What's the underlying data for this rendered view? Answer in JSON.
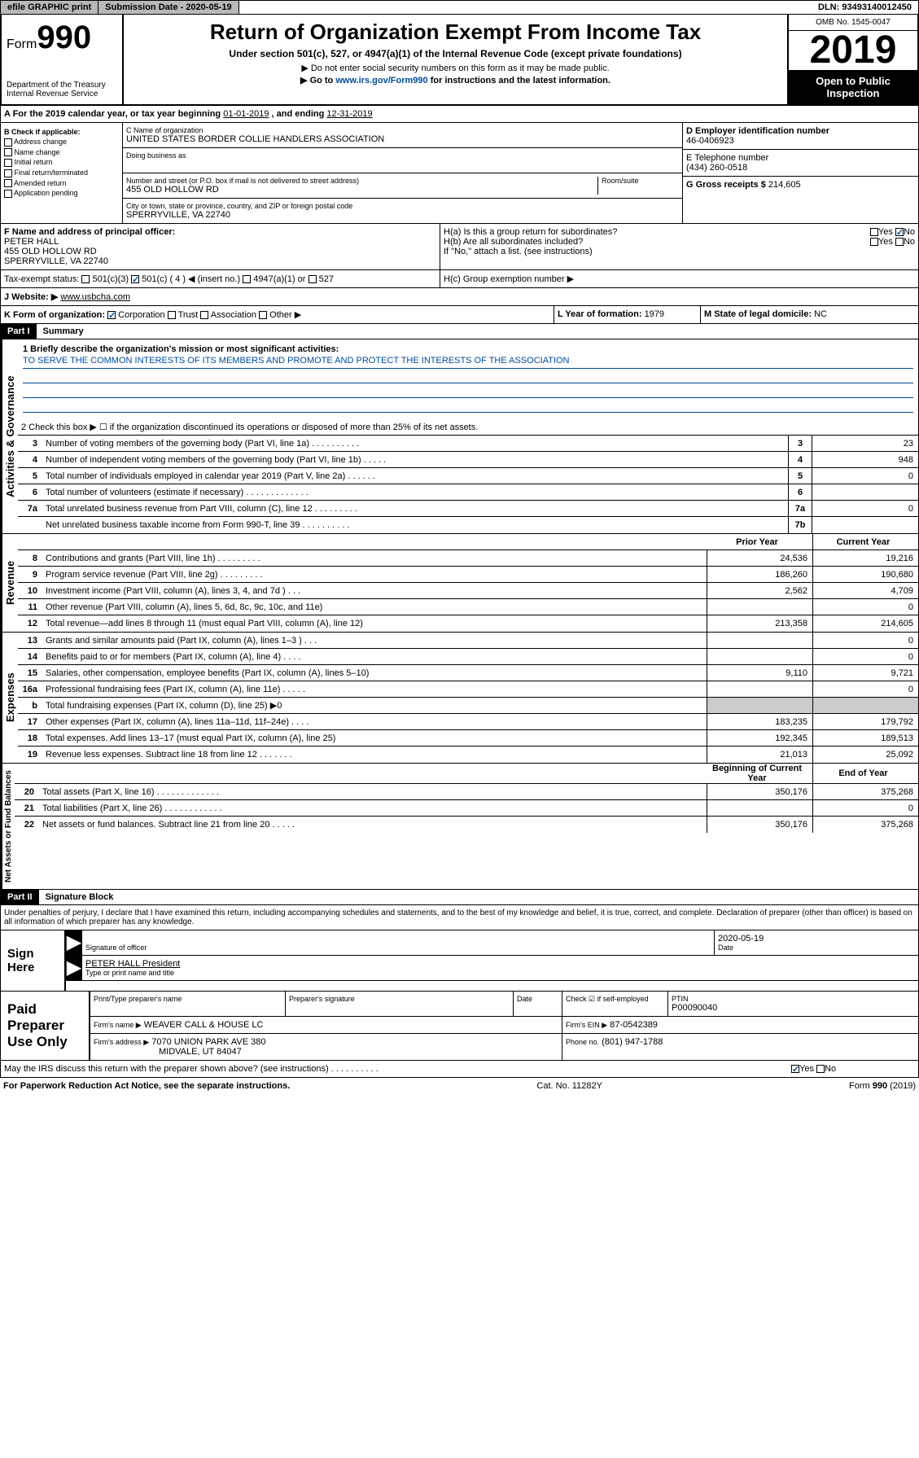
{
  "topbar": {
    "efile": "efile GRAPHIC print",
    "submission": "Submission Date - 2020-05-19",
    "dln": "DLN: 93493140012450"
  },
  "header": {
    "form_prefix": "Form",
    "form_number": "990",
    "dept": "Department of the Treasury Internal Revenue Service",
    "title": "Return of Organization Exempt From Income Tax",
    "subtitle": "Under section 501(c), 527, or 4947(a)(1) of the Internal Revenue Code (except private foundations)",
    "instr1": "▶ Do not enter social security numbers on this form as it may be made public.",
    "instr2_pre": "▶ Go to ",
    "instr2_link": "www.irs.gov/Form990",
    "instr2_post": " for instructions and the latest information.",
    "omb": "OMB No. 1545-0047",
    "year": "2019",
    "open": "Open to Public Inspection"
  },
  "period": {
    "text_pre": "A For the 2019 calendar year, or tax year beginning ",
    "begin": "01-01-2019",
    "mid": " , and ending ",
    "end": "12-31-2019"
  },
  "boxB": {
    "label": "B Check if applicable:",
    "items": [
      "Address change",
      "Name change",
      "Initial return",
      "Final return/terminated",
      "Amended return",
      "Application pending"
    ]
  },
  "boxC": {
    "name_label": "C Name of organization",
    "name": "UNITED STATES BORDER COLLIE HANDLERS ASSOCIATION",
    "dba_label": "Doing business as",
    "addr_label": "Number and street (or P.O. box if mail is not delivered to street address)",
    "room_label": "Room/suite",
    "addr": "455 OLD HOLLOW RD",
    "city_label": "City or town, state or province, country, and ZIP or foreign postal code",
    "city": "SPERRYVILLE, VA  22740"
  },
  "boxD": {
    "label": "D Employer identification number",
    "value": "46-0406923"
  },
  "boxE": {
    "label": "E Telephone number",
    "value": "(434) 260-0518"
  },
  "boxG": {
    "label": "G Gross receipts $ ",
    "value": "214,605"
  },
  "boxF": {
    "label": "F Name and address of principal officer:",
    "name": "PETER HALL",
    "addr1": "455 OLD HOLLOW RD",
    "addr2": "SPERRYVILLE, VA  22740"
  },
  "boxH": {
    "ha": "H(a)  Is this a group return for subordinates?",
    "hb": "H(b)  Are all subordinates included?",
    "hb_note": "If \"No,\" attach a list. (see instructions)",
    "hc": "H(c)  Group exemption number ▶"
  },
  "boxI": {
    "label": "Tax-exempt status:",
    "opt1": "501(c)(3)",
    "opt2": "501(c) ( 4 ) ◀ (insert no.)",
    "opt3": "4947(a)(1) or",
    "opt4": "527"
  },
  "boxJ": {
    "label": "J   Website: ▶",
    "value": "www.usbcha.com"
  },
  "boxK": {
    "label": "K Form of organization:",
    "opts": [
      "Corporation",
      "Trust",
      "Association",
      "Other ▶"
    ]
  },
  "boxL": {
    "label": "L Year of formation: ",
    "value": "1979"
  },
  "boxM": {
    "label": "M State of legal domicile: ",
    "value": "NC"
  },
  "part1": {
    "header": "Part I",
    "title": "Summary",
    "q1_label": "1  Briefly describe the organization's mission or most significant activities:",
    "q1_value": "TO SERVE THE COMMON INTERESTS OF ITS MEMBERS AND PROMOTE AND PROTECT THE INTERESTS OF THE ASSOCIATION",
    "q2": "2   Check this box ▶ ☐  if the organization discontinued its operations or disposed of more than 25% of its net assets.",
    "governance_rows": [
      {
        "num": "3",
        "label": "Number of voting members of the governing body (Part VI, line 1a)  .  .  .  .  .  .  .  .  .  .",
        "col": "3",
        "val": "23"
      },
      {
        "num": "4",
        "label": "Number of independent voting members of the governing body (Part VI, line 1b)  .  .  .  .  .",
        "col": "4",
        "val": "948"
      },
      {
        "num": "5",
        "label": "Total number of individuals employed in calendar year 2019 (Part V, line 2a)  .  .  .  .  .  .",
        "col": "5",
        "val": "0"
      },
      {
        "num": "6",
        "label": "Total number of volunteers (estimate if necessary)  .  .  .  .  .  .  .  .  .  .  .  .  .",
        "col": "6",
        "val": ""
      },
      {
        "num": "7a",
        "label": "Total unrelated business revenue from Part VIII, column (C), line 12  .  .  .  .  .  .  .  .  .",
        "col": "7a",
        "val": "0"
      },
      {
        "num": "",
        "label": "Net unrelated business taxable income from Form 990-T, line 39  .  .  .  .  .  .  .  .  .  .",
        "col": "7b",
        "val": ""
      }
    ],
    "prior_header": "Prior Year",
    "current_header": "Current Year",
    "revenue_rows": [
      {
        "num": "8",
        "label": "Contributions and grants (Part VIII, line 1h)  .  .  .  .  .  .  .  .  .",
        "prior": "24,536",
        "curr": "19,216"
      },
      {
        "num": "9",
        "label": "Program service revenue (Part VIII, line 2g)  .  .  .  .  .  .  .  .  .",
        "prior": "186,260",
        "curr": "190,680"
      },
      {
        "num": "10",
        "label": "Investment income (Part VIII, column (A), lines 3, 4, and 7d )  .  .  .",
        "prior": "2,562",
        "curr": "4,709"
      },
      {
        "num": "11",
        "label": "Other revenue (Part VIII, column (A), lines 5, 6d, 8c, 9c, 10c, and 11e)",
        "prior": "",
        "curr": "0"
      },
      {
        "num": "12",
        "label": "Total revenue—add lines 8 through 11 (must equal Part VIII, column (A), line 12)",
        "prior": "213,358",
        "curr": "214,605"
      }
    ],
    "expense_rows": [
      {
        "num": "13",
        "label": "Grants and similar amounts paid (Part IX, column (A), lines 1–3 )  .   .   .",
        "prior": "",
        "curr": "0"
      },
      {
        "num": "14",
        "label": "Benefits paid to or for members (Part IX, column (A), line 4)  .   .   .   .",
        "prior": "",
        "curr": "0"
      },
      {
        "num": "15",
        "label": "Salaries, other compensation, employee benefits (Part IX, column (A), lines 5–10)",
        "prior": "9,110",
        "curr": "9,721"
      },
      {
        "num": "16a",
        "label": "Professional fundraising fees (Part IX, column (A), line 11e)  .   .   .   .   .",
        "prior": "",
        "curr": "0"
      },
      {
        "num": "b",
        "label": "Total fundraising expenses (Part IX, column (D), line 25) ▶0",
        "prior": "gray",
        "curr": "gray"
      },
      {
        "num": "17",
        "label": "Other expenses (Part IX, column (A), lines 11a–11d, 11f–24e)  .   .   .   .",
        "prior": "183,235",
        "curr": "179,792"
      },
      {
        "num": "18",
        "label": "Total expenses. Add lines 13–17 (must equal Part IX, column (A), line 25)",
        "prior": "192,345",
        "curr": "189,513"
      },
      {
        "num": "19",
        "label": "Revenue less expenses. Subtract line 18 from line 12  .   .   .   .   .   .   .",
        "prior": "21,013",
        "curr": "25,092"
      }
    ],
    "begin_header": "Beginning of Current Year",
    "end_header": "End of Year",
    "assets_rows": [
      {
        "num": "20",
        "label": "Total assets (Part X, line 16)  .   .   .   .   .   .   .   .   .   .   .   .   .",
        "prior": "350,176",
        "curr": "375,268"
      },
      {
        "num": "21",
        "label": "Total liabilities (Part X, line 26)  .   .   .   .   .   .   .   .   .   .   .   .",
        "prior": "",
        "curr": "0"
      },
      {
        "num": "22",
        "label": "Net assets or fund balances. Subtract line 21 from line 20  .   .   .   .   .",
        "prior": "350,176",
        "curr": "375,268"
      }
    ]
  },
  "part2": {
    "header": "Part II",
    "title": "Signature Block",
    "perjury": "Under penalties of perjury, I declare that I have examined this return, including accompanying schedules and statements, and to the best of my knowledge and belief, it is true, correct, and complete. Declaration of preparer (other than officer) is based on all information of which preparer has any knowledge."
  },
  "sign": {
    "label": "Sign Here",
    "sig_label": "Signature of officer",
    "date_label": "Date",
    "date_value": "2020-05-19",
    "name": "PETER HALL President",
    "name_label": "Type or print name and title"
  },
  "paid": {
    "label": "Paid Preparer Use Only",
    "col1": "Print/Type preparer's name",
    "col2": "Preparer's signature",
    "col3": "Date",
    "col4_label": "Check ☑ if self-employed",
    "col5_label": "PTIN",
    "col5_val": "P00090040",
    "firm_name_label": "Firm's name      ▶",
    "firm_name": "WEAVER CALL & HOUSE LC",
    "firm_ein_label": "Firm's EIN ▶",
    "firm_ein": "87-0542389",
    "firm_addr_label": "Firm's address ▶",
    "firm_addr": "7070 UNION PARK AVE 380",
    "firm_city": "MIDVALE, UT  84047",
    "phone_label": "Phone no.",
    "phone": "(801) 947-1788"
  },
  "discuss": "May the IRS discuss this return with the preparer shown above? (see instructions)   .   .   .   .   .   .   .   .   .   .",
  "footer": {
    "left": "For Paperwork Reduction Act Notice, see the separate instructions.",
    "mid": "Cat. No. 11282Y",
    "right": "Form 990 (2019)"
  },
  "side_labels": {
    "gov": "Activities & Governance",
    "rev": "Revenue",
    "exp": "Expenses",
    "net": "Net Assets or Fund Balances"
  },
  "yn": {
    "yes": "Yes",
    "no": "No"
  }
}
